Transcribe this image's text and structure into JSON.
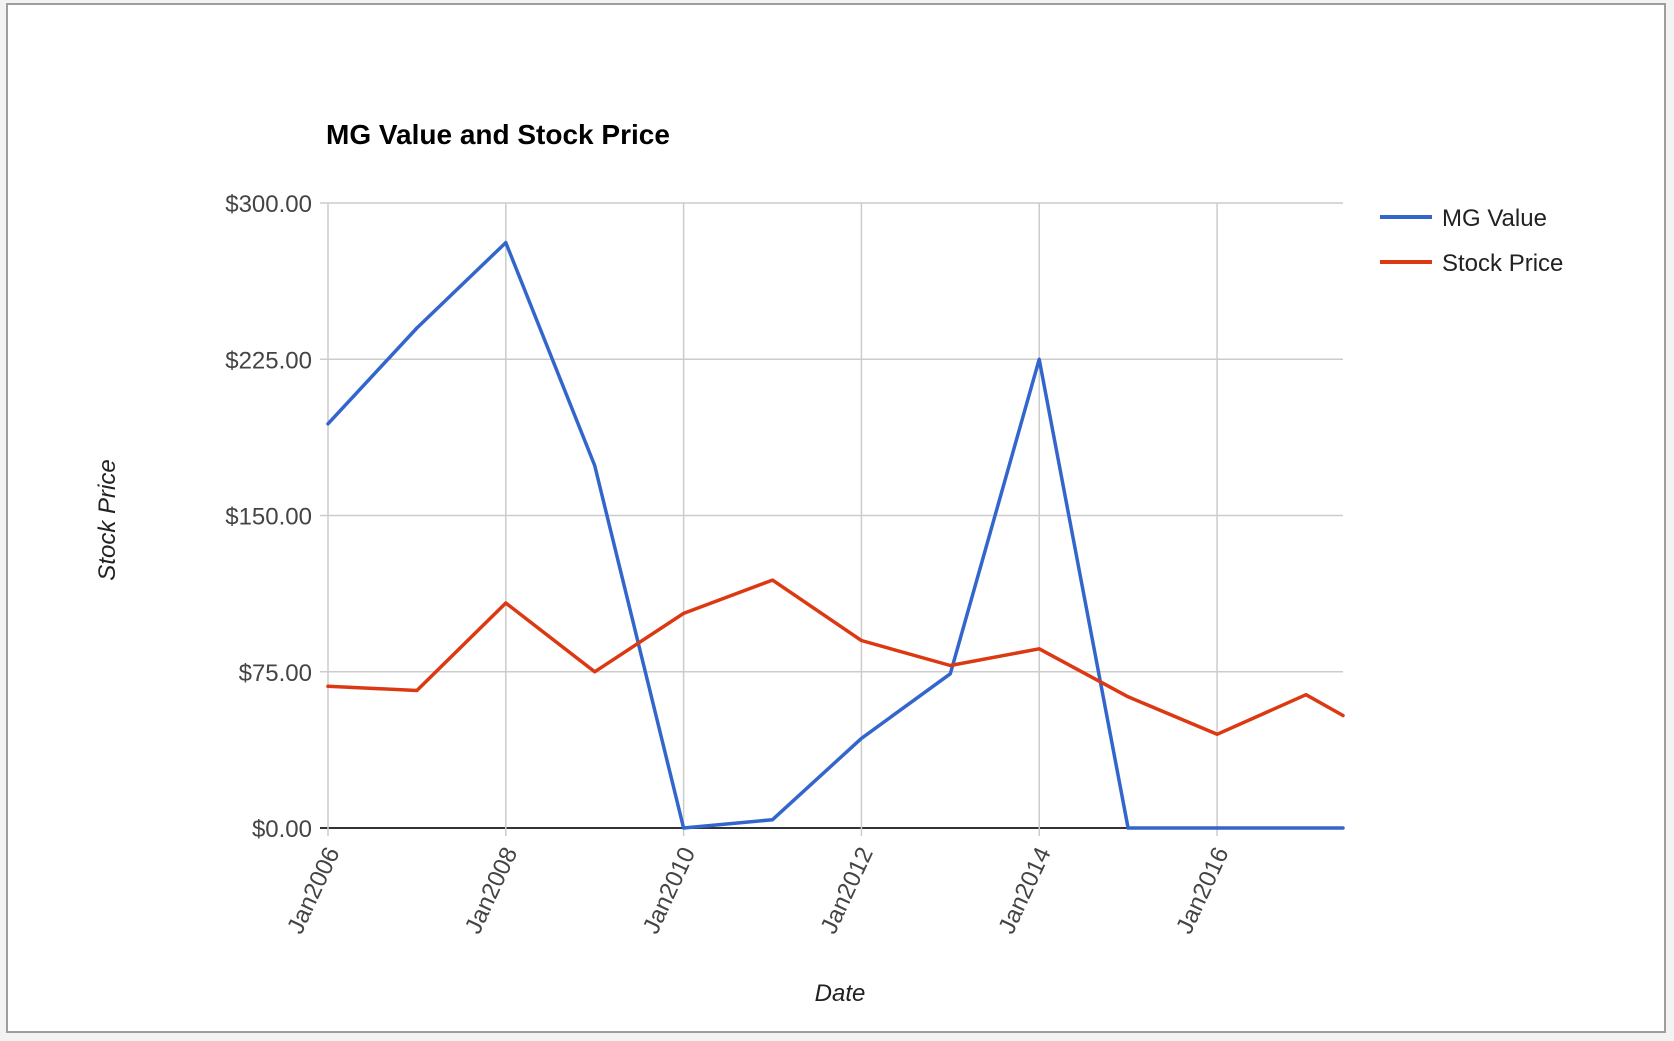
{
  "chart_data": {
    "type": "line",
    "title": "MG Value and Stock Price",
    "xlabel": "Date",
    "ylabel": "Stock Price",
    "x": [
      "2006-01",
      "2007-01",
      "2008-01",
      "2009-01",
      "2010-01",
      "2011-01",
      "2012-01",
      "2013-01",
      "2014-01",
      "2015-01",
      "2016-01",
      "2017-01",
      "2017-06"
    ],
    "x_ticks": [
      "Jan2006",
      "Jan2008",
      "Jan2010",
      "Jan2012",
      "Jan2014",
      "Jan2016"
    ],
    "y_ticks": [
      "$0.00",
      "$75.00",
      "$150.00",
      "$225.00",
      "$300.00"
    ],
    "ylim": [
      0,
      300
    ],
    "grid": true,
    "legend_position": "right",
    "series": [
      {
        "name": "MG Value",
        "color": "#3366cc",
        "values": [
          194,
          240,
          281,
          174,
          0,
          4,
          43,
          74,
          225,
          0,
          0,
          0,
          0
        ]
      },
      {
        "name": "Stock Price",
        "color": "#dc3912",
        "values": [
          68,
          66,
          108,
          75,
          103,
          119,
          90,
          78,
          86,
          63,
          45,
          64,
          54
        ]
      }
    ]
  }
}
